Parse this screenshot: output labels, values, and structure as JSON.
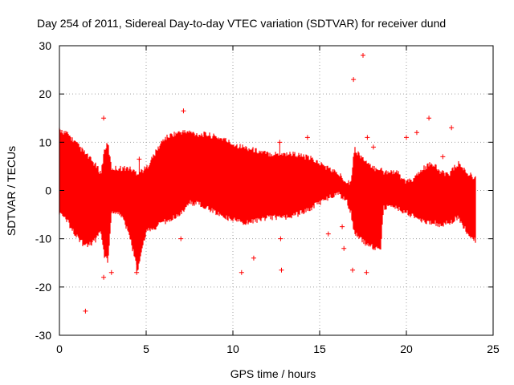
{
  "chart_data": {
    "type": "scatter",
    "title": "Day 254 of 2011, Sidereal Day-to-day VTEC variation (SDTVAR) for receiver dund",
    "xlabel": "GPS time / hours",
    "ylabel": "SDTVAR / TECUs",
    "xlim": [
      0,
      25
    ],
    "ylim": [
      -30,
      30
    ],
    "x_ticks": [
      0,
      5,
      10,
      15,
      20,
      25
    ],
    "y_ticks": [
      -30,
      -20,
      -10,
      0,
      10,
      20,
      30
    ],
    "x_tick_labels": [
      "0",
      "5",
      "10",
      "15",
      "20",
      "25"
    ],
    "y_tick_labels": [
      "-30",
      "-20",
      "-10",
      "0",
      "10",
      "20",
      "30"
    ],
    "grid": true,
    "marker": "+",
    "series": [
      {
        "name": "SDTVAR",
        "color": "#ff0000",
        "envelope": {
          "x": [
            0,
            0.5,
            1.0,
            1.5,
            2.0,
            2.4,
            2.6,
            2.8,
            3.0,
            3.5,
            4.0,
            4.5,
            5.0,
            5.5,
            6.0,
            6.5,
            7.0,
            7.5,
            8.0,
            8.5,
            9.0,
            9.5,
            10.0,
            10.5,
            11.0,
            11.5,
            12.0,
            12.5,
            13.0,
            13.5,
            14.0,
            14.5,
            15.0,
            15.5,
            16.0,
            16.5,
            16.8,
            17.0,
            17.5,
            18.0,
            18.5,
            18.7,
            19.0,
            19.5,
            20.0,
            20.5,
            21.0,
            21.5,
            22.0,
            22.5,
            23.0,
            23.5,
            24.0
          ],
          "upper": [
            12,
            11,
            9,
            7,
            5,
            3,
            8,
            9,
            4,
            4,
            4,
            3,
            4,
            7,
            10,
            11,
            11.5,
            11.5,
            11,
            11,
            10.5,
            10,
            9,
            8.5,
            8,
            7.5,
            7,
            7,
            7,
            7,
            6.5,
            6,
            5,
            4,
            3,
            1.5,
            1,
            8,
            6,
            4,
            4,
            3,
            3.5,
            3,
            1,
            2,
            4,
            5,
            3,
            3,
            5,
            3,
            2
          ],
          "lower": [
            -4,
            -6,
            -9,
            -11,
            -10,
            -8,
            -13,
            -14,
            -4,
            -4,
            -8,
            -16,
            -8,
            -7,
            -6,
            -5,
            -4,
            -2,
            -2,
            -3,
            -4,
            -5,
            -5.5,
            -6,
            -6,
            -5.5,
            -5,
            -5,
            -5,
            -4.5,
            -4,
            -3,
            -2,
            -1,
            0,
            -1,
            -4,
            -8,
            -10,
            -11,
            -12,
            -3,
            -3,
            -3,
            -4,
            -5,
            -6,
            -6,
            -6.5,
            -6,
            -5,
            -8,
            -10
          ]
        },
        "spikes": [
          {
            "x": 1.5,
            "y": -25
          },
          {
            "x": 2.55,
            "y": 15
          },
          {
            "x": 2.55,
            "y": -18
          },
          {
            "x": 3.0,
            "y": -17
          },
          {
            "x": 4.45,
            "y": -17
          },
          {
            "x": 4.6,
            "y": 6.5
          },
          {
            "x": 7.15,
            "y": 16.5
          },
          {
            "x": 7.0,
            "y": -10
          },
          {
            "x": 10.5,
            "y": -17
          },
          {
            "x": 11.2,
            "y": -14
          },
          {
            "x": 12.7,
            "y": 10
          },
          {
            "x": 12.75,
            "y": -10
          },
          {
            "x": 12.8,
            "y": -16.5
          },
          {
            "x": 14.3,
            "y": 11
          },
          {
            "x": 15.5,
            "y": -9
          },
          {
            "x": 16.3,
            "y": -7.5
          },
          {
            "x": 16.4,
            "y": -12
          },
          {
            "x": 16.95,
            "y": 23
          },
          {
            "x": 16.9,
            "y": -16.5
          },
          {
            "x": 17.5,
            "y": 28
          },
          {
            "x": 17.7,
            "y": -17
          },
          {
            "x": 17.75,
            "y": 11
          },
          {
            "x": 18.1,
            "y": 9
          },
          {
            "x": 20.0,
            "y": 11
          },
          {
            "x": 20.6,
            "y": 12
          },
          {
            "x": 21.3,
            "y": 15
          },
          {
            "x": 22.1,
            "y": 7
          },
          {
            "x": 22.6,
            "y": 13
          }
        ]
      }
    ]
  }
}
